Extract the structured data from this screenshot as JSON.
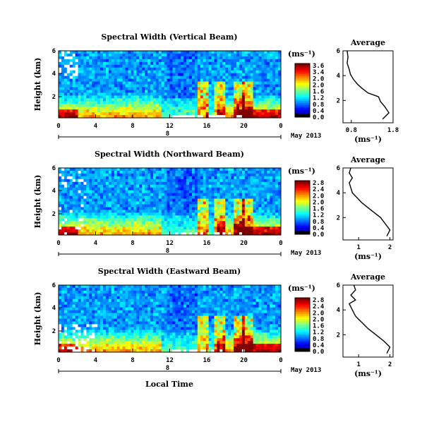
{
  "chart_data": [
    {
      "type": "heatmap",
      "title": "Spectral Width (Vertical Beam)",
      "ylabel": "Height (km)",
      "xticks": [
        "0",
        "4",
        "8",
        "12",
        "16",
        "20",
        "0"
      ],
      "yticks": [
        "6",
        "4",
        "2"
      ],
      "date_label": "May 2013",
      "day_marker": "8",
      "colorbar": {
        "unit": "(ms⁻¹)",
        "ticks": [
          "3.6",
          "3.4",
          "2.0",
          "2.0",
          "1.6",
          "1.2",
          "0.8",
          "0.4",
          "0.0"
        ]
      },
      "profile": {
        "title": "Average",
        "xlabel": "(ms⁻¹)",
        "xticks": [
          "0.8",
          "1.8"
        ],
        "yticks": [
          "6",
          "4",
          "2"
        ],
        "xlim": [
          0.6,
          1.8
        ],
        "ylim": [
          0.2,
          6
        ],
        "points": [
          [
            1.55,
            0.5
          ],
          [
            1.7,
            1.0
          ],
          [
            1.6,
            1.5
          ],
          [
            1.5,
            1.9
          ],
          [
            1.45,
            2.3
          ],
          [
            1.2,
            2.6
          ],
          [
            1.05,
            3.0
          ],
          [
            0.95,
            3.3
          ],
          [
            0.85,
            3.7
          ],
          [
            0.78,
            4.1
          ],
          [
            0.75,
            4.5
          ],
          [
            0.7,
            5.0
          ],
          [
            0.72,
            5.5
          ],
          [
            0.7,
            6.0
          ]
        ]
      }
    },
    {
      "type": "heatmap",
      "title": "Spectral Width (Northward Beam)",
      "ylabel": "Height (km)",
      "xticks": [
        "0",
        "4",
        "8",
        "12",
        "16",
        "20",
        "0"
      ],
      "yticks": [
        "6",
        "4",
        "2"
      ],
      "date_label": "May 2013",
      "day_marker": "8",
      "colorbar": {
        "unit": "(ms⁻¹)",
        "ticks": [
          "2.8",
          "2.4",
          "2.0",
          "2.0",
          "1.6",
          "1.2",
          "0.8",
          "0.4",
          "0.0"
        ]
      },
      "profile": {
        "title": "Average",
        "xlabel": "(ms⁻¹)",
        "xticks": [
          "1",
          "2"
        ],
        "yticks": [
          "6",
          "4",
          "2"
        ],
        "xlim": [
          0.5,
          2.1
        ],
        "ylim": [
          0.2,
          6
        ],
        "points": [
          [
            1.9,
            0.5
          ],
          [
            2.0,
            1.0
          ],
          [
            1.85,
            1.5
          ],
          [
            1.7,
            2.0
          ],
          [
            1.5,
            2.4
          ],
          [
            1.3,
            2.8
          ],
          [
            1.1,
            3.2
          ],
          [
            0.95,
            3.6
          ],
          [
            0.8,
            4.0
          ],
          [
            0.75,
            4.4
          ],
          [
            0.7,
            4.8
          ],
          [
            0.8,
            5.2
          ],
          [
            0.7,
            5.6
          ],
          [
            0.75,
            6.0
          ]
        ]
      }
    },
    {
      "type": "heatmap",
      "title": "Spectral Width (Eastward Beam)",
      "ylabel": "Height (km)",
      "xlabel": "Local Time",
      "xticks": [
        "0",
        "4",
        "8",
        "12",
        "16",
        "20",
        "0"
      ],
      "yticks": [
        "6",
        "4",
        "2"
      ],
      "date_label": "May 2013",
      "day_marker": "8",
      "colorbar": {
        "unit": "(ms⁻¹)",
        "ticks": [
          "2.8",
          "2.4",
          "2.0",
          "2.0",
          "1.6",
          "1.2",
          "0.8",
          "0.4",
          "0.0"
        ]
      },
      "profile": {
        "title": "Average",
        "xlabel": "(ms⁻¹)",
        "xticks": [
          "1",
          "2"
        ],
        "yticks": [
          "6",
          "4",
          "2"
        ],
        "xlim": [
          0.5,
          2.1
        ],
        "ylim": [
          0.2,
          6
        ],
        "points": [
          [
            1.9,
            0.5
          ],
          [
            2.0,
            1.0
          ],
          [
            1.8,
            1.5
          ],
          [
            1.55,
            2.0
          ],
          [
            1.3,
            2.5
          ],
          [
            1.1,
            3.0
          ],
          [
            0.9,
            3.5
          ],
          [
            0.8,
            4.0
          ],
          [
            0.7,
            4.5
          ],
          [
            0.9,
            4.8
          ],
          [
            0.75,
            5.2
          ],
          [
            0.9,
            5.6
          ],
          [
            0.85,
            6.0
          ]
        ]
      }
    }
  ]
}
